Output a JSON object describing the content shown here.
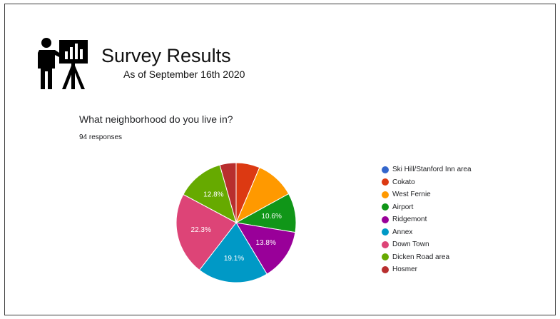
{
  "header": {
    "title": "Survey Results",
    "subtitle": "As of September 16th 2020"
  },
  "icons": {
    "presenter": "presentation-icon"
  },
  "chart_data": {
    "type": "pie",
    "title": "What neighborhood do you live in?",
    "subtitle": "94 responses",
    "legend_position": "right",
    "start_angle_deg": 0,
    "direction": "clockwise",
    "slices": [
      {
        "label": "Ski Hill/Stanford Inn area",
        "value": 0.0,
        "display": "",
        "color": "#3366cc"
      },
      {
        "label": "Cokato",
        "value": 6.4,
        "display": "",
        "color": "#dc3912"
      },
      {
        "label": "West Fernie",
        "value": 10.6,
        "display": "",
        "color": "#ff9900"
      },
      {
        "label": "Airport",
        "value": 10.6,
        "display": "10.6%",
        "color": "#109618"
      },
      {
        "label": "Ridgemont",
        "value": 13.8,
        "display": "13.8%",
        "color": "#990099"
      },
      {
        "label": "Annex",
        "value": 19.1,
        "display": "19.1%",
        "color": "#0099c6"
      },
      {
        "label": "Down Town",
        "value": 22.3,
        "display": "22.3%",
        "color": "#dd4477"
      },
      {
        "label": "Dicken Road area",
        "value": 12.8,
        "display": "12.8%",
        "color": "#66aa00"
      },
      {
        "label": "Hosmer",
        "value": 4.4,
        "display": "",
        "color": "#b82e2e"
      }
    ]
  }
}
